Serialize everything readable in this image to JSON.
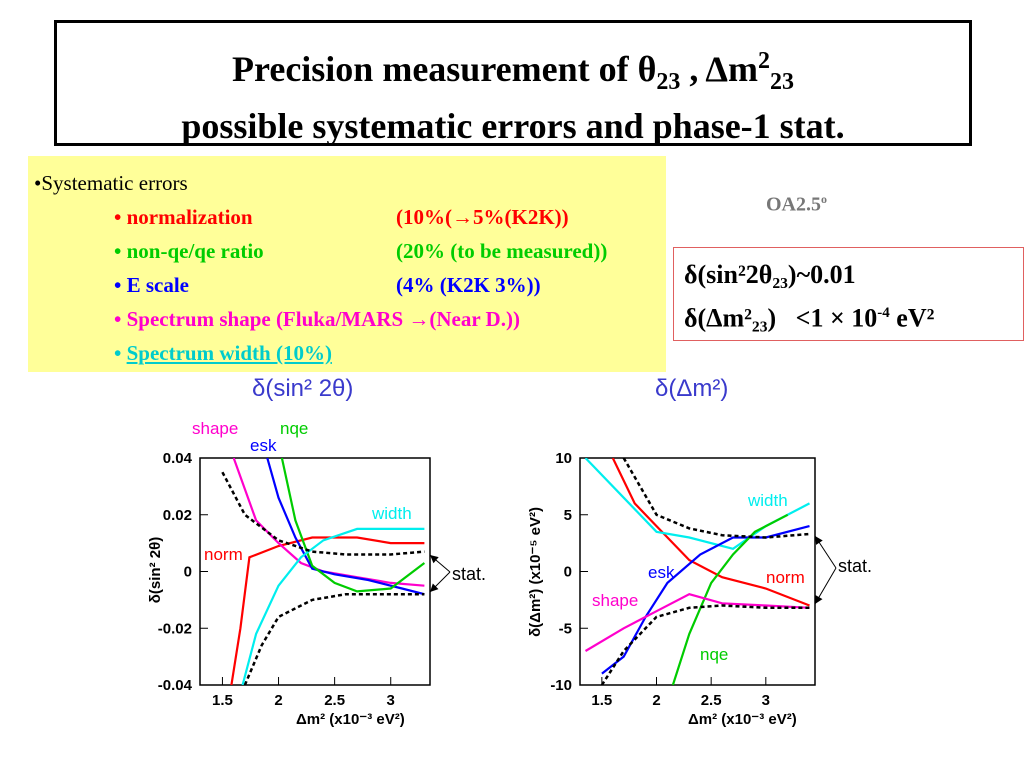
{
  "title": {
    "line1_text": "Precision measurement of ",
    "theta": "θ",
    "theta_sub": "23",
    "sep": " , ",
    "dm": "Δm",
    "dm_sup": "2",
    "dm_sub": "23",
    "line2": "possible systematic errors and phase-1 stat."
  },
  "systematics": {
    "header": "•Systematic errors",
    "items": [
      {
        "name": "• normalization",
        "value": "(10%(→5%(K2K))",
        "color": "#ff0000"
      },
      {
        "name": "• non-qe/qe ratio",
        "value": "(20% (to be measured))",
        "color": "#00cc00"
      },
      {
        "name": "• E scale",
        "value": "(4% (K2K 3%))",
        "color": "#0000ff"
      },
      {
        "name": "• Spectrum shape (Fluka/MARS →(Near D.))",
        "value": "",
        "color": "#ff00cc"
      },
      {
        "name": "• ",
        "link": "Spectrum width  (10%)",
        "color": "#00cccc"
      }
    ]
  },
  "oa_label": "OA2.5",
  "oa_sup": "o",
  "results": {
    "line1": "δ(sin²2θ₂₃)~0.01",
    "line2_a": "δ(Δm²₂₃)",
    "line2_b": "<1 × 10",
    "line2_exp": "-4",
    "line2_c": " eV²"
  },
  "chart_data": [
    {
      "type": "line",
      "header": "δ(sin² 2θ)",
      "ylabel": "δ(sin² 2θ)",
      "xlabel": "Δm² (x10⁻³ eV²)",
      "xlim": [
        1.3,
        3.35
      ],
      "ylim": [
        -0.04,
        0.04
      ],
      "xticks": [
        "1.5",
        "2",
        "2.5",
        "3"
      ],
      "yticks": [
        "0.04",
        "0.02",
        "0",
        "-0.02",
        "-0.04"
      ],
      "stat_label": "stat.",
      "series": [
        {
          "name": "norm",
          "color": "#ff0000",
          "dash": false,
          "x": [
            1.58,
            1.66,
            1.74,
            2.0,
            2.3,
            2.7,
            3.0,
            3.3
          ],
          "y": [
            -0.04,
            -0.02,
            0.005,
            0.009,
            0.012,
            0.012,
            0.01,
            0.01
          ]
        },
        {
          "name": "shape",
          "color": "#ff00cc",
          "dash": false,
          "x": [
            1.6,
            1.8,
            2.0,
            2.2,
            2.4,
            2.7,
            3.0,
            3.3
          ],
          "y": [
            0.04,
            0.018,
            0.01,
            0.003,
            0.0,
            -0.002,
            -0.004,
            -0.005
          ]
        },
        {
          "name": "esk",
          "color": "#0000ff",
          "dash": false,
          "x": [
            1.9,
            2.0,
            2.15,
            2.3,
            2.5,
            2.8,
            3.1,
            3.3
          ],
          "y": [
            0.04,
            0.026,
            0.012,
            0.001,
            -0.001,
            -0.003,
            -0.006,
            -0.008
          ]
        },
        {
          "name": "nqe",
          "color": "#00cc00",
          "dash": false,
          "x": [
            2.03,
            2.15,
            2.3,
            2.5,
            2.7,
            3.0,
            3.3
          ],
          "y": [
            0.04,
            0.018,
            0.002,
            -0.004,
            -0.007,
            -0.006,
            0.003
          ]
        },
        {
          "name": "width",
          "color": "#00eeee",
          "dash": false,
          "x": [
            1.68,
            1.8,
            2.0,
            2.2,
            2.4,
            2.7,
            3.0,
            3.3
          ],
          "y": [
            -0.04,
            -0.022,
            -0.005,
            0.005,
            0.011,
            0.015,
            0.015,
            0.015
          ]
        },
        {
          "name": "stat+",
          "color": "#000000",
          "dash": true,
          "x": [
            1.5,
            1.7,
            2.0,
            2.3,
            2.6,
            3.0,
            3.3
          ],
          "y": [
            0.035,
            0.02,
            0.011,
            0.007,
            0.006,
            0.006,
            0.007
          ]
        },
        {
          "name": "stat-",
          "color": "#000000",
          "dash": true,
          "x": [
            1.7,
            1.85,
            2.0,
            2.3,
            2.6,
            3.0,
            3.3
          ],
          "y": [
            -0.04,
            -0.026,
            -0.016,
            -0.01,
            -0.008,
            -0.008,
            -0.008
          ]
        }
      ],
      "labels": {
        "shape": "shape",
        "nqe": "nqe",
        "esk": "esk",
        "width": "width",
        "norm": "norm"
      }
    },
    {
      "type": "line",
      "header": "δ(Δm²)",
      "ylabel": "δ(Δm²) (x10⁻⁵ eV²)",
      "xlabel": "Δm² (x10⁻³ eV²)",
      "xlim": [
        1.3,
        3.45
      ],
      "ylim": [
        -10,
        10
      ],
      "xticks": [
        "1.5",
        "2",
        "2.5",
        "3"
      ],
      "yticks": [
        "10",
        "5",
        "0",
        "-5",
        "-10"
      ],
      "stat_label": "stat.",
      "series": [
        {
          "name": "norm",
          "color": "#ff0000",
          "dash": false,
          "x": [
            1.6,
            1.8,
            2.0,
            2.3,
            2.6,
            3.0,
            3.4
          ],
          "y": [
            10,
            6,
            4,
            1,
            -0.5,
            -1.5,
            -3
          ]
        },
        {
          "name": "width",
          "color": "#00eeee",
          "dash": false,
          "x": [
            1.35,
            1.7,
            2.0,
            2.3,
            2.7,
            3.0,
            3.4
          ],
          "y": [
            10,
            6.5,
            3.5,
            3.0,
            2.0,
            4.0,
            6.0
          ]
        },
        {
          "name": "esk",
          "color": "#0000ff",
          "dash": false,
          "x": [
            1.5,
            1.7,
            1.9,
            2.1,
            2.4,
            2.7,
            3.0,
            3.4
          ],
          "y": [
            -9,
            -7.5,
            -4,
            -1,
            1.5,
            3.0,
            3.0,
            4.0
          ]
        },
        {
          "name": "nqe",
          "color": "#00cc00",
          "dash": false,
          "x": [
            2.15,
            2.3,
            2.5,
            2.7,
            2.9,
            3.2
          ],
          "y": [
            -10,
            -5.5,
            -1,
            1.5,
            3.5,
            5.0
          ]
        },
        {
          "name": "shape",
          "color": "#ff00cc",
          "dash": false,
          "x": [
            1.35,
            1.7,
            2.0,
            2.3,
            2.6,
            3.0,
            3.4
          ],
          "y": [
            -7,
            -5,
            -3.5,
            -2,
            -2.8,
            -3,
            -3.2
          ]
        },
        {
          "name": "stat+",
          "color": "#000000",
          "dash": true,
          "x": [
            1.7,
            2.0,
            2.3,
            2.6,
            3.0,
            3.4
          ],
          "y": [
            10,
            5.0,
            3.8,
            3.2,
            3.0,
            3.3
          ]
        },
        {
          "name": "stat-",
          "color": "#000000",
          "dash": true,
          "x": [
            1.5,
            1.7,
            2.0,
            2.3,
            2.6,
            3.0,
            3.4
          ],
          "y": [
            -10,
            -7,
            -4,
            -3.2,
            -3.0,
            -3.2,
            -3.2
          ]
        }
      ],
      "labels": {
        "width": "width",
        "esk": "esk",
        "norm": "norm",
        "shape": "shape",
        "nqe": "nqe"
      }
    }
  ]
}
